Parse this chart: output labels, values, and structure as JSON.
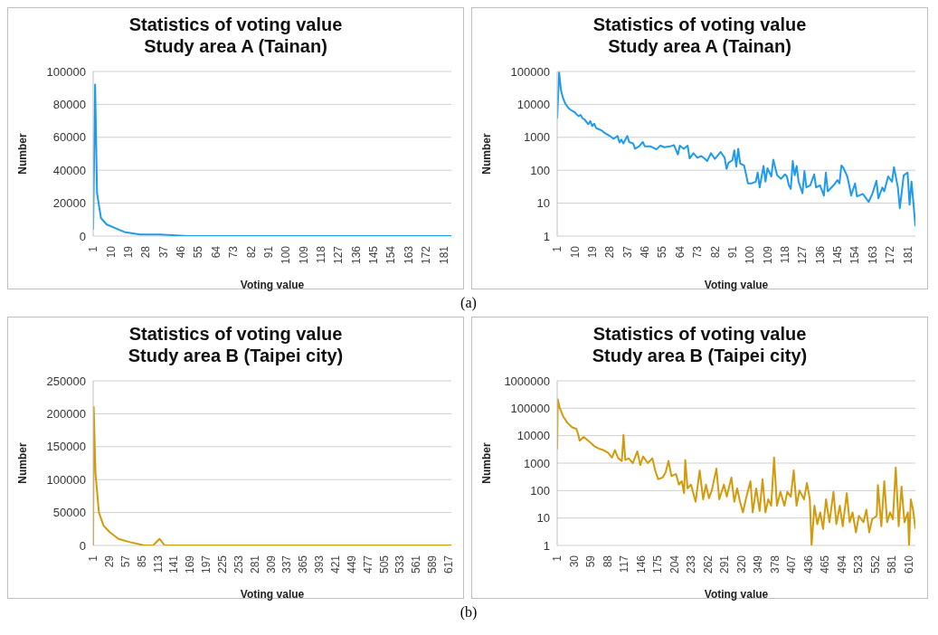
{
  "chart_data": [
    {
      "type": "line",
      "title": "Statistics of voting value\nStudy area A (Tainan)",
      "xlabel": "Voting value",
      "ylabel": "Number",
      "color": "#1e9bef",
      "grid": "y",
      "annotations": [
        "(a)"
      ],
      "x": [
        1,
        2,
        3,
        5,
        8,
        12,
        17,
        25,
        35,
        50,
        70,
        95,
        125,
        155,
        185
      ],
      "values": [
        4000,
        92000,
        26000,
        11000,
        7000,
        5000,
        2500,
        1000,
        1000,
        0,
        0,
        0,
        0,
        0,
        0
      ],
      "xlim": [
        1,
        185
      ],
      "xticks": [
        1,
        10,
        19,
        28,
        37,
        46,
        55,
        64,
        73,
        82,
        91,
        100,
        109,
        118,
        127,
        136,
        145,
        154,
        163,
        172,
        181
      ],
      "ylim": [
        0,
        100000
      ],
      "yticks": [
        0,
        20000,
        40000,
        60000,
        80000,
        100000
      ]
    },
    {
      "type": "line",
      "title": "Statistics of voting value\nStudy area A (Tainan)",
      "xlabel": "Voting value",
      "ylabel": "Number",
      "color": "#1e9bef",
      "grid": "y",
      "log": "y",
      "x": [
        1,
        2,
        3,
        4,
        5,
        6,
        7,
        8,
        9,
        10,
        11,
        12,
        13,
        14,
        15,
        17,
        18,
        19,
        20,
        21,
        22,
        24,
        25,
        28,
        30,
        32,
        33,
        34,
        35,
        37,
        38,
        40,
        41,
        43,
        45,
        46,
        49,
        52,
        54,
        56,
        59,
        61,
        63,
        64,
        66,
        68,
        69,
        71,
        73,
        75,
        77,
        78,
        80,
        82,
        85,
        87,
        88,
        89,
        91,
        92,
        93,
        94,
        95,
        97,
        98,
        99,
        101,
        103,
        104,
        105,
        107,
        108,
        109,
        111,
        112,
        114,
        116,
        118,
        119,
        120,
        121,
        122,
        123,
        124,
        125,
        127,
        128,
        129,
        131,
        133,
        134,
        136,
        138,
        139,
        140,
        143,
        145,
        146,
        147,
        148,
        150,
        151,
        152,
        154,
        155,
        158,
        161,
        163,
        165,
        166,
        168,
        169,
        171,
        173,
        174,
        176,
        177,
        179,
        181,
        182,
        183,
        184,
        185
      ],
      "values": [
        3700,
        92000,
        26000,
        15500,
        11000,
        9000,
        7500,
        6800,
        6200,
        5800,
        5000,
        4400,
        4800,
        3800,
        3500,
        2500,
        3100,
        2200,
        2600,
        1900,
        1800,
        1600,
        1400,
        1100,
        900,
        1100,
        700,
        850,
        650,
        1100,
        720,
        650,
        450,
        530,
        720,
        530,
        530,
        430,
        560,
        500,
        530,
        580,
        300,
        560,
        450,
        560,
        230,
        330,
        240,
        270,
        220,
        190,
        330,
        220,
        360,
        240,
        110,
        170,
        200,
        400,
        130,
        450,
        160,
        140,
        75,
        40,
        40,
        45,
        85,
        30,
        135,
        45,
        115,
        65,
        210,
        70,
        55,
        75,
        65,
        35,
        27,
        190,
        70,
        135,
        45,
        20,
        95,
        30,
        35,
        75,
        30,
        35,
        17,
        85,
        23,
        35,
        50,
        40,
        140,
        120,
        65,
        35,
        17,
        40,
        16,
        19,
        11,
        20,
        48,
        14,
        30,
        23,
        65,
        45,
        125,
        30,
        7,
        70,
        85,
        9,
        45,
        10,
        2
      ],
      "xlim": [
        1,
        185
      ],
      "xticks": [
        1,
        10,
        19,
        28,
        37,
        46,
        55,
        64,
        73,
        82,
        91,
        100,
        109,
        118,
        127,
        136,
        145,
        154,
        163,
        172,
        181
      ],
      "ylim": [
        1,
        100000
      ],
      "yticks": [
        1,
        10,
        100,
        1000,
        10000,
        100000
      ]
    },
    {
      "type": "line",
      "title": "Statistics of voting value\nStudy area B (Taipei city)",
      "xlabel": "Voting value",
      "ylabel": "Number",
      "color": "#d39b0b",
      "grid": "y",
      "annotations": [
        "(b)"
      ],
      "x": [
        1,
        2,
        5,
        11,
        19,
        30,
        45,
        65,
        90,
        105,
        116,
        125,
        150,
        200,
        260,
        350,
        450,
        550,
        622
      ],
      "values": [
        0,
        210000,
        110000,
        50000,
        30000,
        20000,
        10000,
        5000,
        0,
        0,
        10000,
        0,
        0,
        0,
        0,
        0,
        0,
        0,
        0
      ],
      "xlim": [
        1,
        622
      ],
      "xticks": [
        1,
        29,
        57,
        85,
        113,
        141,
        169,
        197,
        225,
        253,
        281,
        309,
        337,
        365,
        393,
        421,
        449,
        477,
        505,
        533,
        561,
        589,
        617
      ],
      "ylim": [
        0,
        250000
      ],
      "yticks": [
        0,
        50000,
        100000,
        150000,
        200000,
        250000
      ]
    },
    {
      "type": "line",
      "title": "Statistics of voting value\nStudy area B (Taipei city)",
      "xlabel": "Voting value",
      "ylabel": "Number",
      "color": "#d39b0b",
      "grid": "y",
      "log": "y",
      "x": [
        1,
        2,
        5,
        11,
        19,
        27,
        34,
        37,
        40,
        47,
        58,
        65,
        73,
        81,
        89,
        96,
        101,
        107,
        113,
        116,
        119,
        125,
        132,
        140,
        145,
        150,
        158,
        166,
        171,
        176,
        184,
        189,
        194,
        199,
        207,
        212,
        217,
        221,
        223,
        227,
        233,
        241,
        248,
        254,
        259,
        264,
        269,
        277,
        282,
        290,
        295,
        303,
        308,
        313,
        318,
        323,
        328,
        336,
        340,
        346,
        352,
        357,
        362,
        367,
        372,
        377,
        382,
        388,
        395,
        400,
        406,
        411,
        416,
        421,
        429,
        434,
        439,
        442,
        447,
        452,
        457,
        462,
        467,
        473,
        480,
        485,
        491,
        496,
        503,
        508,
        513,
        519,
        524,
        532,
        537,
        542,
        547,
        555,
        557,
        563,
        568,
        573,
        578,
        583,
        588,
        593,
        598,
        603,
        609,
        611,
        614,
        618,
        622
      ],
      "values": [
        3200,
        212000,
        110000,
        52000,
        29000,
        20000,
        18000,
        12000,
        6600,
        9000,
        5700,
        4200,
        3400,
        3000,
        2400,
        1600,
        3000,
        1500,
        1200,
        10700,
        1300,
        1500,
        1000,
        2700,
        850,
        1750,
        1000,
        1500,
        540,
        260,
        300,
        460,
        1200,
        340,
        400,
        165,
        220,
        80,
        1300,
        120,
        165,
        39,
        540,
        48,
        165,
        53,
        100,
        630,
        48,
        165,
        60,
        300,
        39,
        120,
        39,
        16,
        48,
        220,
        16,
        120,
        18,
        260,
        16,
        48,
        28,
        1600,
        28,
        90,
        28,
        90,
        60,
        540,
        28,
        100,
        48,
        190,
        48,
        1,
        28,
        6,
        16,
        4,
        48,
        7,
        90,
        6,
        28,
        5,
        80,
        7,
        16,
        3,
        12,
        7,
        20,
        3,
        9,
        12,
        160,
        5,
        220,
        7,
        16,
        9,
        700,
        5,
        140,
        7,
        16,
        1,
        48,
        20,
        4
      ],
      "xlim": [
        1,
        622
      ],
      "xticks": [
        1,
        30,
        59,
        88,
        117,
        146,
        175,
        204,
        233,
        262,
        291,
        320,
        349,
        378,
        407,
        436,
        465,
        494,
        523,
        552,
        581,
        610
      ],
      "ylim": [
        1,
        1000000
      ],
      "yticks": [
        1,
        10,
        100,
        1000,
        10000,
        100000,
        1000000
      ]
    }
  ]
}
